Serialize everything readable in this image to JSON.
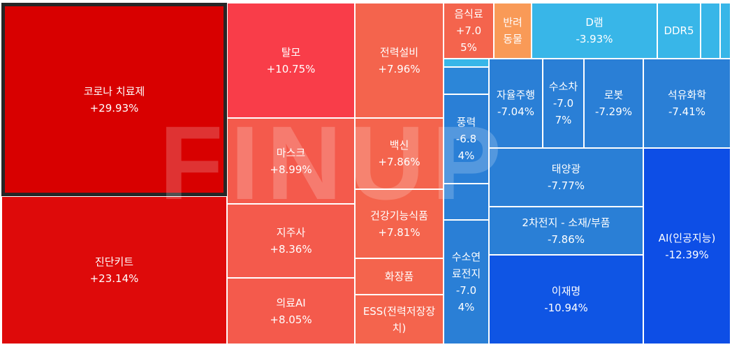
{
  "watermark": "FINUP",
  "chart_data": {
    "type": "treemap",
    "tiles": [
      {
        "name": "코로나 치료제",
        "change": "+29.93%",
        "value": 29.93,
        "color": "#d80000",
        "selected": true
      },
      {
        "name": "진단키트",
        "change": "+23.14%",
        "value": 23.14,
        "color": "#de0a0a"
      },
      {
        "name": "탈모",
        "change": "+10.75%",
        "value": 10.75,
        "color": "#f93d49"
      },
      {
        "name": "마스크",
        "change": "+8.99%",
        "value": 8.99,
        "color": "#f45a4c"
      },
      {
        "name": "지주사",
        "change": "+8.36%",
        "value": 8.36,
        "color": "#f45a4c"
      },
      {
        "name": "의료AI",
        "change": "+8.05%",
        "value": 8.05,
        "color": "#f45a4c"
      },
      {
        "name": "전력설비",
        "change": "+7.96%",
        "value": 7.96,
        "color": "#f4644d"
      },
      {
        "name": "백신",
        "change": "+7.86%",
        "value": 7.86,
        "color": "#f4644d"
      },
      {
        "name": "건강기능식품",
        "change": "+7.81%",
        "value": 7.81,
        "color": "#f4644d"
      },
      {
        "name": "화장품",
        "change": "",
        "value": null,
        "color": "#f4644d"
      },
      {
        "name": "ESS(전력저장장치)",
        "change": "",
        "value": null,
        "color": "#f4644d"
      },
      {
        "name": "음식료",
        "change": "+7.05%",
        "value": 7.05,
        "color": "#f4644d"
      },
      {
        "name": "반려동물",
        "change": "",
        "value": null,
        "color": "#f99a57"
      },
      {
        "name": "D램",
        "change": "-3.93%",
        "value": -3.93,
        "color": "#38b6e8"
      },
      {
        "name": "DDR5",
        "change": "",
        "value": null,
        "color": "#38b6e8"
      },
      {
        "name": "",
        "change": "",
        "value": null,
        "color": "#38b6e8"
      },
      {
        "name": "",
        "change": "",
        "value": null,
        "color": "#38b6e8"
      },
      {
        "name": "",
        "change": "",
        "value": null,
        "color": "#38b6e8"
      },
      {
        "name": "",
        "change": "",
        "value": null,
        "color": "#2c86d8"
      },
      {
        "name": "풍력",
        "change": "-6.84%",
        "value": -6.84,
        "color": "#2a7fd6"
      },
      {
        "name": "",
        "change": "",
        "value": null,
        "color": "#2a7fd6"
      },
      {
        "name": "수소연료전지",
        "change": "-7.04%",
        "value": -7.04,
        "color": "#2a7fd6"
      },
      {
        "name": "자율주행",
        "change": "-7.04%",
        "value": -7.04,
        "color": "#2a7fd6"
      },
      {
        "name": "수소차",
        "change": "-7.07%",
        "value": -7.07,
        "color": "#2a7fd6"
      },
      {
        "name": "로봇",
        "change": "-7.29%",
        "value": -7.29,
        "color": "#2a7fd6"
      },
      {
        "name": "석유화학",
        "change": "-7.41%",
        "value": -7.41,
        "color": "#2a7fd6"
      },
      {
        "name": "태양광",
        "change": "-7.77%",
        "value": -7.77,
        "color": "#2a7fd6"
      },
      {
        "name": "2차전지 - 소재/부품",
        "change": "-7.86%",
        "value": -7.86,
        "color": "#2a7fd6"
      },
      {
        "name": "이재명",
        "change": "-10.94%",
        "value": -10.94,
        "color": "#0f55e4"
      },
      {
        "name": "AI(인공지능)",
        "change": "-12.39%",
        "value": -12.39,
        "color": "#0d4ee6"
      }
    ]
  }
}
